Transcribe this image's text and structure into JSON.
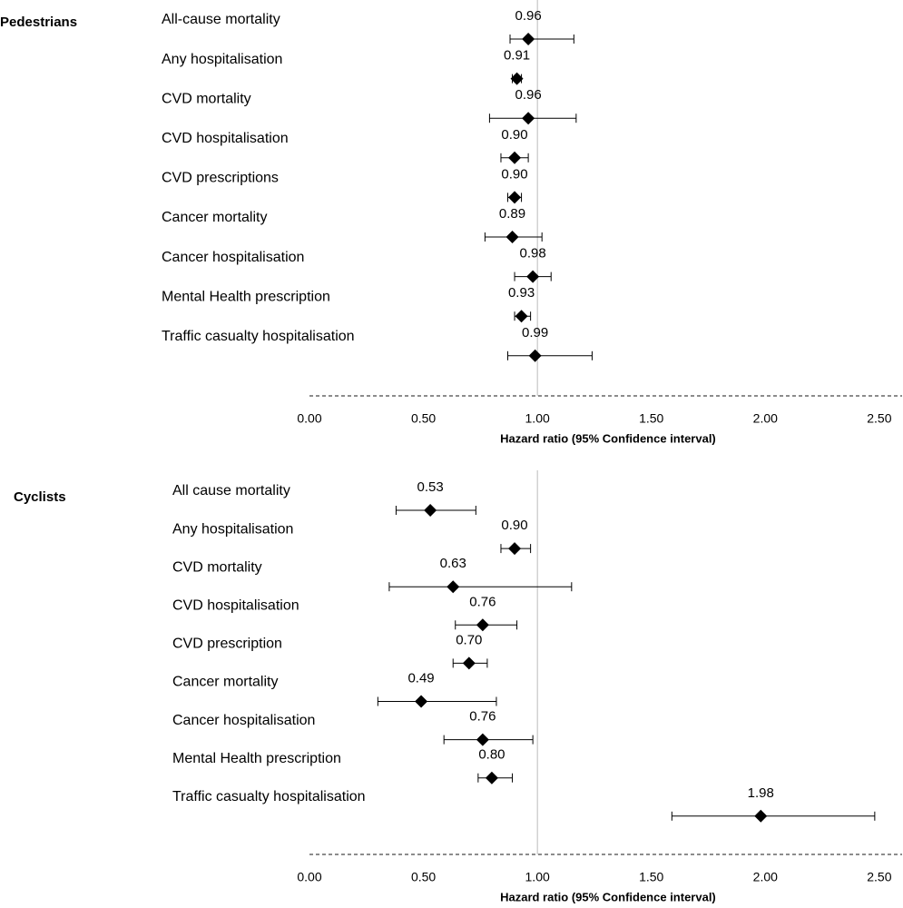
{
  "chart_data": [
    {
      "type": "forest",
      "title": "Pedestrians",
      "categories": [
        "All-cause mortality",
        "Any hospitalisation",
        "CVD mortality",
        "CVD hospitalisation",
        "CVD prescriptions",
        "Cancer mortality",
        "Cancer hospitalisation",
        "Mental Health prescription",
        "Traffic casualty hospitalisation"
      ],
      "values": [
        0.96,
        0.91,
        0.96,
        0.9,
        0.9,
        0.89,
        0.98,
        0.93,
        0.99
      ],
      "value_labels": [
        "0.96",
        "0.91",
        "0.96",
        "0.90",
        "0.90",
        "0.89",
        "0.98",
        "0.93",
        "0.99"
      ],
      "ci_low": [
        0.88,
        0.89,
        0.79,
        0.84,
        0.87,
        0.77,
        0.9,
        0.9,
        0.87
      ],
      "ci_high": [
        1.16,
        0.93,
        1.17,
        0.96,
        0.93,
        1.02,
        1.06,
        0.97,
        1.24
      ],
      "xlabel": "Hazard ratio (95% Confidence interval)",
      "xlim": [
        0,
        2.6
      ],
      "xticks": [
        {
          "value": 0,
          "label": "0.00"
        },
        {
          "value": 0.5,
          "label": "0.50"
        },
        {
          "value": 1,
          "label": "1.00"
        },
        {
          "value": 1.5,
          "label": "1.50"
        },
        {
          "value": 2,
          "label": "2.00"
        },
        {
          "value": 2.5,
          "label": "2.50"
        }
      ],
      "reference_line": 1,
      "color": "#000000"
    },
    {
      "type": "forest",
      "title": "Cyclists",
      "categories": [
        "All cause mortality",
        "Any hospitalisation",
        "CVD mortality",
        "CVD hospitalisation",
        "CVD prescription",
        "Cancer mortality",
        "Cancer hospitalisation",
        "Mental Health prescription",
        "Traffic casualty hospitalisation"
      ],
      "values": [
        0.53,
        0.9,
        0.63,
        0.76,
        0.7,
        0.49,
        0.76,
        0.8,
        1.98
      ],
      "value_labels": [
        "0.53",
        "0.90",
        "0.63",
        "0.76",
        "0.70",
        "0.49",
        "0.76",
        "0.80",
        "1.98"
      ],
      "ci_low": [
        0.38,
        0.84,
        0.35,
        0.64,
        0.63,
        0.3,
        0.59,
        0.74,
        1.59
      ],
      "ci_high": [
        0.73,
        0.97,
        1.15,
        0.91,
        0.78,
        0.82,
        0.98,
        0.89,
        2.48
      ],
      "xlabel": "Hazard ratio (95% Confidence interval)",
      "xlim": [
        0,
        2.6
      ],
      "xticks": [
        {
          "value": 0,
          "label": "0.00"
        },
        {
          "value": 0.5,
          "label": "0.50"
        },
        {
          "value": 1,
          "label": "1.00"
        },
        {
          "value": 1.5,
          "label": "1.50"
        },
        {
          "value": 2,
          "label": "2.00"
        },
        {
          "value": 2.5,
          "label": "2.50"
        }
      ],
      "reference_line": 1,
      "color": "#000000"
    }
  ]
}
